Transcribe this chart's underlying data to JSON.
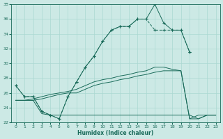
{
  "xlabel": "Humidex (Indice chaleur)",
  "background_color": "#cce9e5",
  "grid_color": "#aad8d2",
  "line_color": "#1a6b5a",
  "hours": [
    0,
    1,
    2,
    3,
    4,
    5,
    6,
    7,
    8,
    9,
    10,
    11,
    12,
    13,
    14,
    15,
    16,
    17,
    18,
    19,
    20,
    21,
    22,
    23
  ],
  "curve_top": [
    27,
    25.5,
    25.5,
    23.5,
    23.0,
    22.5,
    25.5,
    27.5,
    29.5,
    31.0,
    33.0,
    34.5,
    35.0,
    35.0,
    36.0,
    36.0,
    38.0,
    35.5,
    34.5,
    34.5,
    31.5,
    null,
    null,
    null
  ],
  "curve_smooth_top": [
    27,
    25.5,
    25.5,
    23.5,
    23.0,
    22.5,
    25.5,
    27.5,
    29.5,
    31.0,
    33.0,
    34.5,
    35.0,
    35.0,
    36.0,
    36.0,
    34.5,
    34.5,
    34.5,
    34.5,
    31.5,
    null,
    null,
    null
  ],
  "curve_diag_upper": [
    25.0,
    25.0,
    25.2,
    25.5,
    25.8,
    26.0,
    26.2,
    26.5,
    27.0,
    27.5,
    27.8,
    28.0,
    28.3,
    28.5,
    28.8,
    29.0,
    29.5,
    29.5,
    29.2,
    29.0,
    22.5,
    23.0,
    23.0,
    23.0
  ],
  "curve_diag_lower": [
    25.0,
    25.0,
    25.0,
    25.2,
    25.5,
    25.8,
    26.0,
    26.0,
    26.5,
    27.0,
    27.3,
    27.5,
    27.8,
    28.0,
    28.3,
    28.5,
    28.8,
    29.0,
    29.0,
    29.0,
    22.5,
    22.5,
    23.0,
    23.0
  ],
  "curve_flat": [
    25.0,
    25.0,
    25.0,
    23.2,
    23.0,
    23.0,
    23.0,
    23.0,
    23.0,
    23.0,
    23.0,
    23.0,
    23.0,
    23.0,
    23.0,
    23.0,
    23.0,
    23.0,
    23.0,
    23.0,
    23.0,
    22.5,
    23.0,
    23.0
  ],
  "ylim": [
    22,
    38
  ],
  "xlim": [
    -0.5,
    23.5
  ],
  "yticks": [
    22,
    24,
    26,
    28,
    30,
    32,
    34,
    36,
    38
  ],
  "xticks": [
    0,
    1,
    2,
    3,
    4,
    5,
    6,
    7,
    8,
    9,
    10,
    11,
    12,
    13,
    14,
    15,
    16,
    17,
    18,
    19,
    20,
    21,
    22,
    23
  ]
}
